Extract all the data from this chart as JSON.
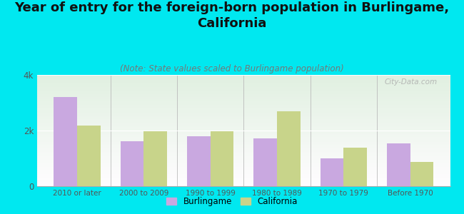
{
  "title": "Year of entry for the foreign-born population in Burlingame,\nCalifornia",
  "subtitle": "(Note: State values scaled to Burlingame population)",
  "categories": [
    "2010 or later",
    "2000 to 2009",
    "1990 to 1999",
    "1980 to 1989",
    "1970 to 1979",
    "Before 1970"
  ],
  "burlingame": [
    3200,
    1620,
    1800,
    1730,
    1000,
    1530
  ],
  "california": [
    2180,
    1980,
    1980,
    2700,
    1380,
    880
  ],
  "burlingame_color": "#c9a8e0",
  "california_color": "#c8d48a",
  "background_color": "#00e8f0",
  "ylim": [
    0,
    4000
  ],
  "ytick_labels": [
    "0",
    "2k",
    "4k"
  ],
  "watermark": "City-Data.com",
  "legend_labels": [
    "Burlingame",
    "California"
  ],
  "title_fontsize": 13,
  "subtitle_fontsize": 8.5
}
